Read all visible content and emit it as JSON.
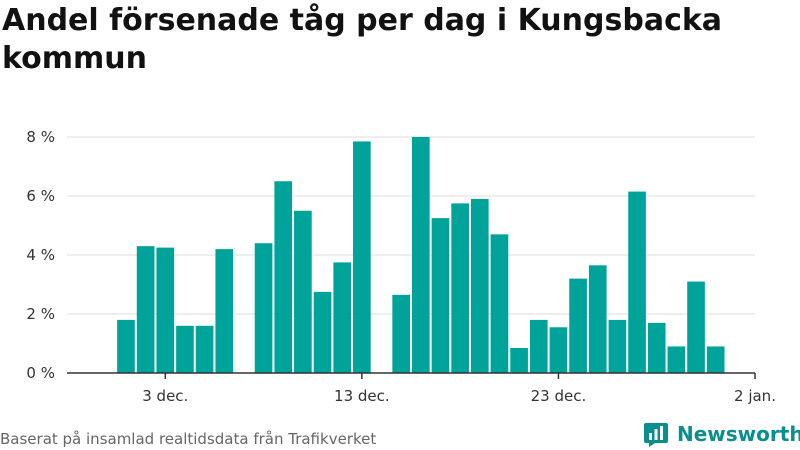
{
  "title": "Andel försenade tåg per dag i Kungsbacka kommun",
  "footer": "Baserat på insamlad realtidsdata från Trafikverket",
  "brand": {
    "name": "Newsworthy",
    "icon": "bar-chart-logo-icon"
  },
  "colors": {
    "bar": "#00a39a",
    "grid": "#dddddd",
    "axis": "#333333",
    "brand": "#0a8f8f"
  },
  "chart_data": {
    "type": "bar",
    "title": "Andel försenade tåg per dag i Kungsbacka kommun",
    "xlabel": "",
    "ylabel": "",
    "x_range": [
      "2024-11-28",
      "2025-01-02"
    ],
    "ylim": [
      0,
      8
    ],
    "y_ticks": [
      {
        "value": 0,
        "label": "0 %"
      },
      {
        "value": 2,
        "label": "2 %"
      },
      {
        "value": 4,
        "label": "4 %"
      },
      {
        "value": 6,
        "label": "6 %"
      },
      {
        "value": 8,
        "label": "8 %"
      }
    ],
    "x_ticks": [
      {
        "date": "2024-12-03",
        "label": "3 dec."
      },
      {
        "date": "2024-12-13",
        "label": "13 dec."
      },
      {
        "date": "2024-12-23",
        "label": "23 dec."
      },
      {
        "date": "2025-01-02",
        "label": "2 jan."
      }
    ],
    "grid": true,
    "legend": "none",
    "values": [
      {
        "date": "2024-12-01",
        "value": 1.8
      },
      {
        "date": "2024-12-02",
        "value": 4.3
      },
      {
        "date": "2024-12-03",
        "value": 4.25
      },
      {
        "date": "2024-12-04",
        "value": 1.6
      },
      {
        "date": "2024-12-05",
        "value": 1.6
      },
      {
        "date": "2024-12-06",
        "value": 4.2
      },
      {
        "date": "2024-12-08",
        "value": 4.4
      },
      {
        "date": "2024-12-09",
        "value": 6.5
      },
      {
        "date": "2024-12-10",
        "value": 5.5
      },
      {
        "date": "2024-12-11",
        "value": 2.75
      },
      {
        "date": "2024-12-12",
        "value": 3.75
      },
      {
        "date": "2024-12-13",
        "value": 7.85
      },
      {
        "date": "2024-12-15",
        "value": 2.65
      },
      {
        "date": "2024-12-16",
        "value": 8.0
      },
      {
        "date": "2024-12-17",
        "value": 5.25
      },
      {
        "date": "2024-12-18",
        "value": 5.75
      },
      {
        "date": "2024-12-19",
        "value": 5.9
      },
      {
        "date": "2024-12-20",
        "value": 4.7
      },
      {
        "date": "2024-12-21",
        "value": 0.85
      },
      {
        "date": "2024-12-22",
        "value": 1.8
      },
      {
        "date": "2024-12-23",
        "value": 1.55
      },
      {
        "date": "2024-12-24",
        "value": 3.2
      },
      {
        "date": "2024-12-25",
        "value": 3.65
      },
      {
        "date": "2024-12-26",
        "value": 1.8
      },
      {
        "date": "2024-12-27",
        "value": 6.15
      },
      {
        "date": "2024-12-28",
        "value": 1.7
      },
      {
        "date": "2024-12-29",
        "value": 0.9
      },
      {
        "date": "2024-12-30",
        "value": 3.1
      },
      {
        "date": "2024-12-31",
        "value": 0.9
      }
    ]
  }
}
